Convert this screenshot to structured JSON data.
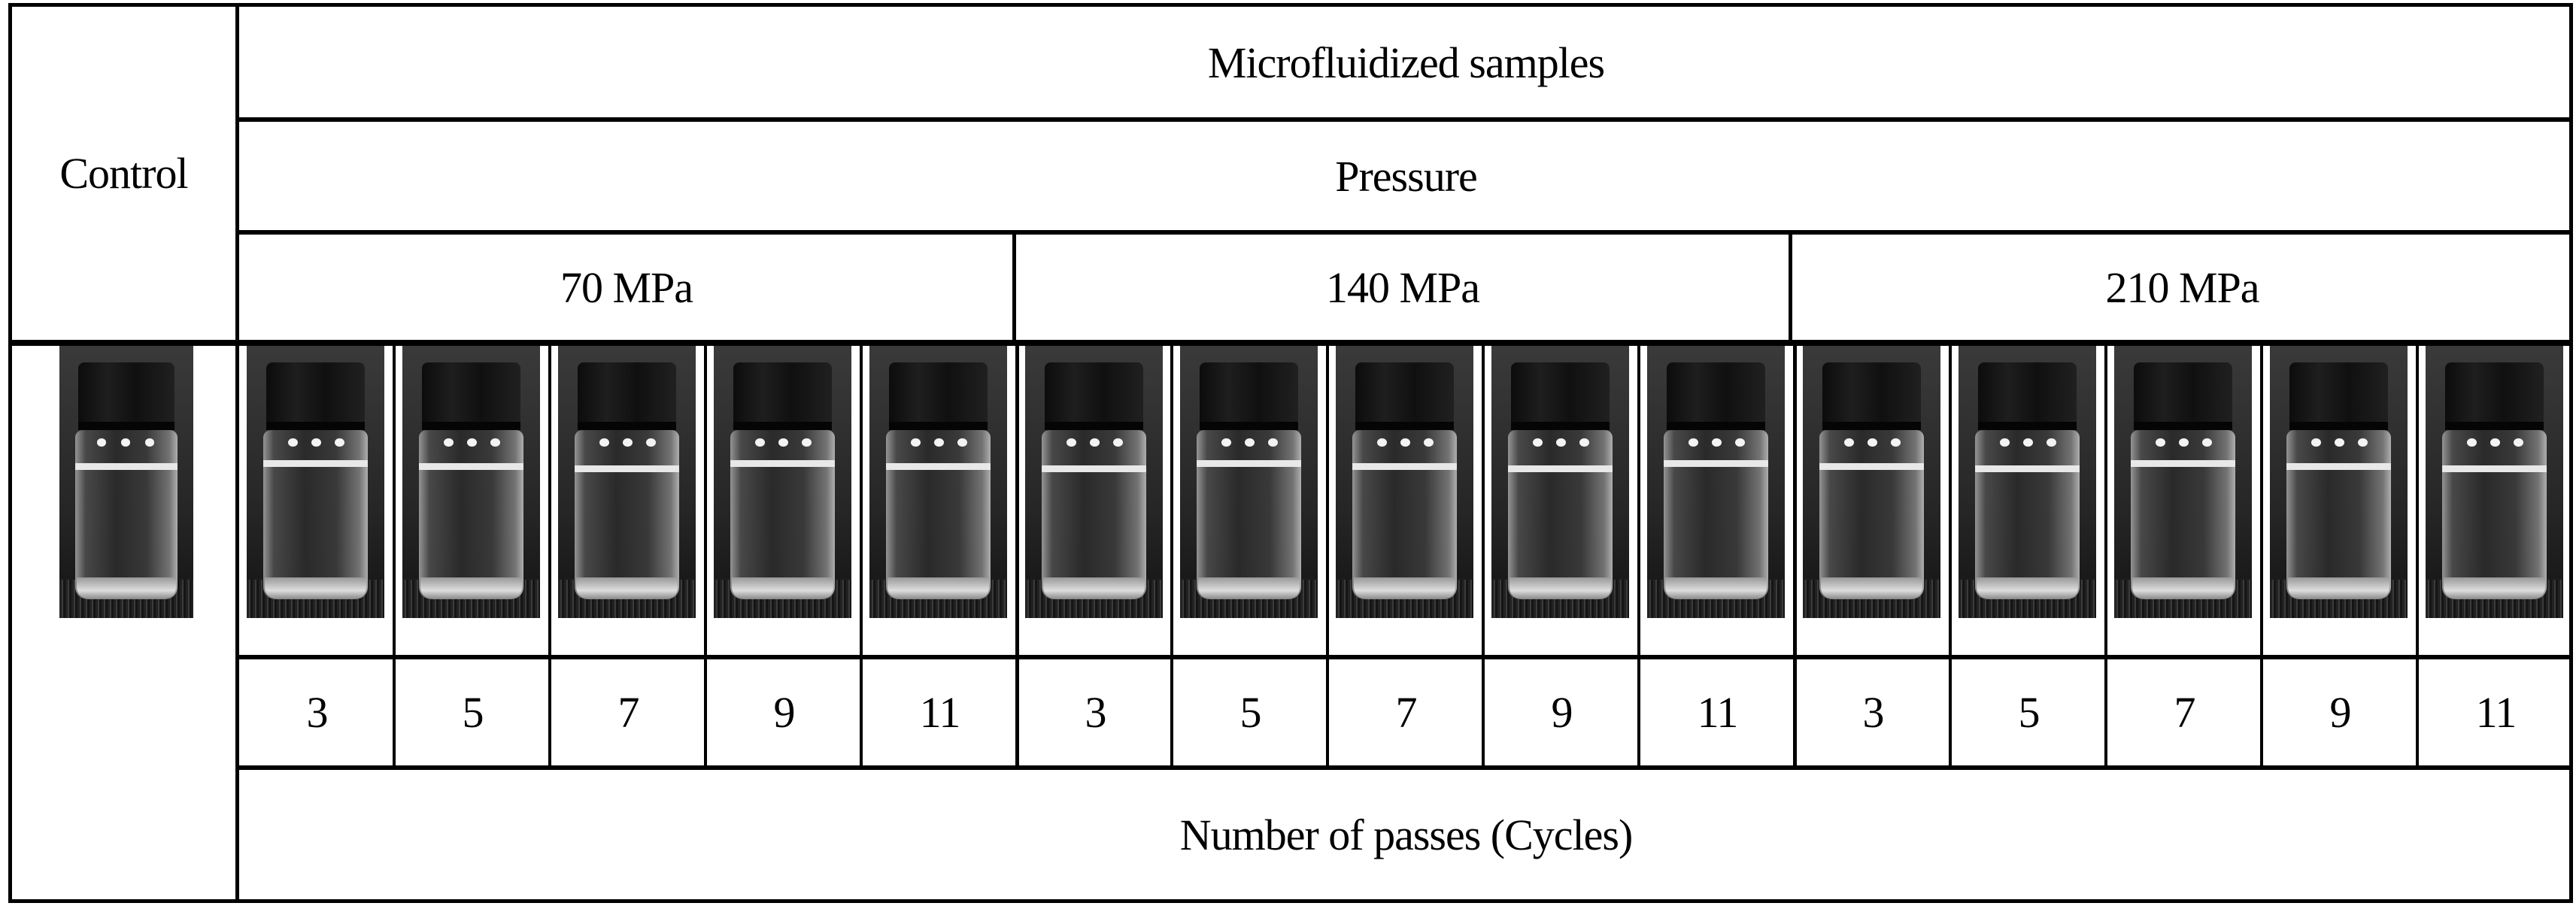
{
  "table": {
    "control_header": "Control",
    "group_header": "Microfluidized samples",
    "factor_header": "Pressure",
    "pressures": [
      {
        "label": "70 MPa"
      },
      {
        "label": "140 MPa"
      },
      {
        "label": "210 MPa"
      }
    ],
    "passes": [
      "3",
      "5",
      "7",
      "9",
      "11",
      "3",
      "5",
      "7",
      "9",
      "11",
      "3",
      "5",
      "7",
      "9",
      "11"
    ],
    "passes_label": "Number of passes (Cycles)",
    "photos": {
      "control": "control-vial-photo",
      "samples": [
        "vial-70MPa-3",
        "vial-70MPa-5",
        "vial-70MPa-7",
        "vial-70MPa-9",
        "vial-70MPa-11",
        "vial-140MPa-3",
        "vial-140MPa-5",
        "vial-140MPa-7",
        "vial-140MPa-9",
        "vial-140MPa-11",
        "vial-210MPa-3",
        "vial-210MPa-5",
        "vial-210MPa-7",
        "vial-210MPa-9",
        "vial-210MPa-11"
      ]
    }
  },
  "colors": {
    "border": "#000000",
    "background": "#ffffff",
    "text": "#000000"
  }
}
